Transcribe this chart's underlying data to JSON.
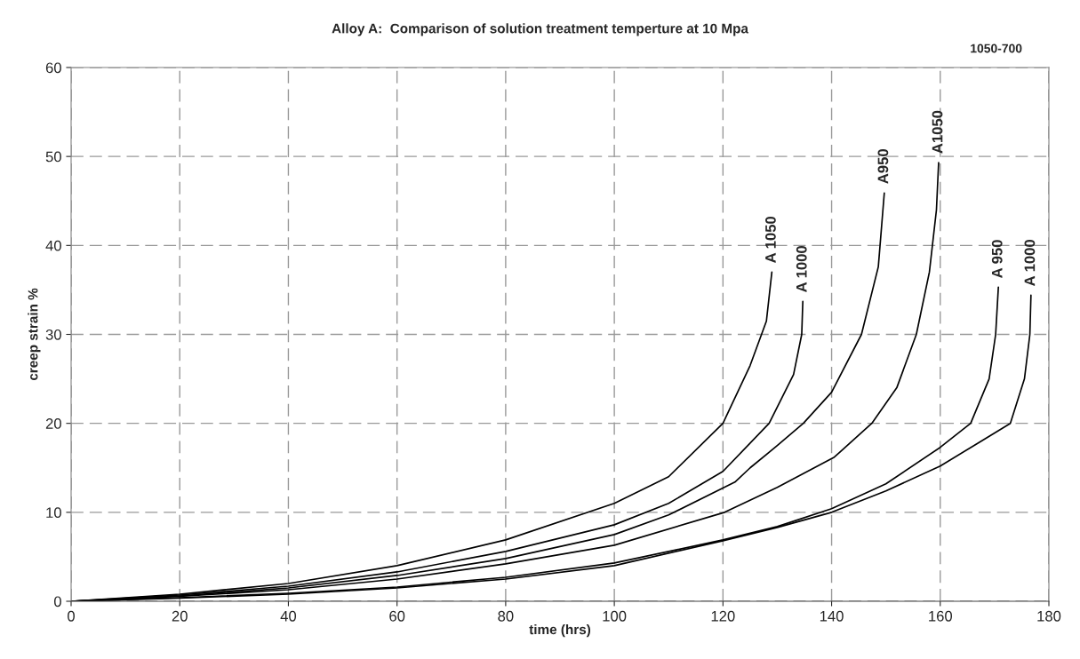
{
  "chart_data": {
    "type": "line",
    "title": "Alloy A:  Comparison of solution treatment temperture at 10 Mpa",
    "xlabel": "time (hrs)",
    "ylabel": "creep strain %",
    "annotations": [
      "1050-700"
    ],
    "xlim": [
      0,
      180
    ],
    "xticks": [
      0,
      20,
      40,
      60,
      80,
      100,
      120,
      140,
      160,
      180
    ],
    "ylim": [
      0,
      60
    ],
    "yticks": [
      0,
      10,
      20,
      30,
      40,
      50,
      60
    ],
    "grid": true,
    "legend": false,
    "marker": "none",
    "line_style": "solid",
    "series": [
      {
        "name": "A 1050",
        "color": "#000000",
        "x": [
          0,
          20,
          40,
          60,
          80,
          100,
          110,
          120,
          125,
          128,
          129
        ],
        "values": [
          0,
          0.8,
          2.0,
          4.0,
          6.9,
          11,
          14,
          20,
          26.5,
          31.5,
          37
        ]
      },
      {
        "name": "A 1000",
        "color": "#000000",
        "x": [
          0,
          20,
          40,
          60,
          80,
          100,
          110,
          120,
          128.5,
          133,
          134.5,
          134.7
        ],
        "values": [
          0,
          0.7,
          1.7,
          3.3,
          5.6,
          8.6,
          11,
          14.6,
          20,
          25.5,
          30,
          33.7
        ]
      },
      {
        "name": "A950",
        "color": "#000000",
        "x": [
          0,
          20,
          40,
          60,
          80,
          100,
          110,
          122.2,
          125,
          130,
          134.8,
          140,
          145.5,
          148.6,
          149.7
        ],
        "values": [
          0,
          0.6,
          1.5,
          2.9,
          4.8,
          7.5,
          9.7,
          13.4,
          15,
          17.5,
          20,
          23.5,
          30,
          37.6,
          45.9
        ]
      },
      {
        "name": "A1050",
        "color": "#000000",
        "x": [
          0,
          20,
          40,
          60,
          80,
          100,
          120.3,
          130,
          140.5,
          147.4,
          152,
          155.6,
          158,
          159.3,
          159.7
        ],
        "values": [
          0,
          0.55,
          1.3,
          2.5,
          4.2,
          6.3,
          10,
          12.8,
          16.2,
          20,
          24,
          30,
          37,
          44,
          49.3
        ]
      },
      {
        "name": "A 950",
        "color": "#000000",
        "x": [
          0,
          20,
          40,
          60,
          80,
          100,
          120,
          130,
          140,
          150,
          160,
          165.6,
          169,
          170.2,
          170.7
        ],
        "values": [
          0,
          0.4,
          0.9,
          1.6,
          2.7,
          4.3,
          6.9,
          8.4,
          10.4,
          13.2,
          17.3,
          20,
          25,
          30,
          35.3
        ]
      },
      {
        "name": "A 1000",
        "color": "#000000",
        "x": [
          0,
          20,
          40,
          60,
          80,
          100,
          120,
          130,
          140,
          150,
          160,
          167,
          172.9,
          175.5,
          176.5,
          176.7
        ],
        "values": [
          0,
          0.35,
          0.8,
          1.5,
          2.5,
          4.0,
          6.8,
          8.3,
          10.0,
          12.4,
          15.2,
          17.8,
          20,
          25,
          30,
          34.4
        ]
      }
    ]
  }
}
